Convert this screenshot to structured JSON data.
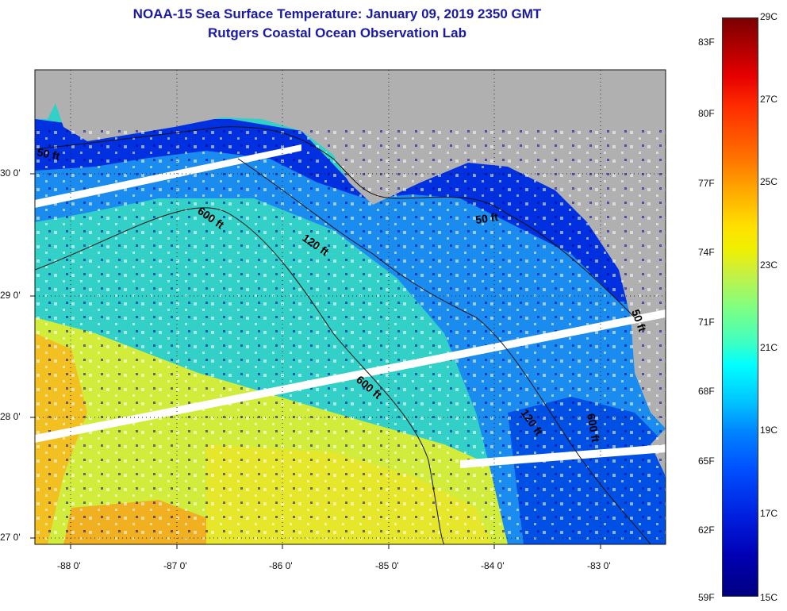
{
  "header": {
    "title": "NOAA-15 Sea Surface Temperature:  January 09, 2019 2350 GMT",
    "subtitle": "Rutgers Coastal Ocean Observation Lab"
  },
  "map": {
    "lon_range": [
      -88.35,
      -82.35
    ],
    "lat_range": [
      26.95,
      30.85
    ],
    "lon_ticks": [
      "-88 0'",
      "-87 0'",
      "-86 0'",
      "-85 0'",
      "-84 0'",
      "-83 0'"
    ],
    "lat_ticks": [
      "30 0'",
      "29 0'",
      "28 0'",
      "27 0'"
    ],
    "contour_labels": [
      "50 ft",
      "600 ft",
      "120 ft",
      "50 ft",
      "600 ft",
      "120 ft",
      "600 ft",
      "50 ft"
    ],
    "land_color": "#b0b0b0",
    "grid": "dotted"
  },
  "colorbar": {
    "fahrenheit_labels": [
      "83F",
      "80F",
      "77F",
      "74F",
      "71F",
      "68F",
      "65F",
      "62F",
      "59F"
    ],
    "celsius_labels": [
      "29C",
      "27C",
      "25C",
      "23C",
      "21C",
      "19C",
      "17C",
      "15C"
    ],
    "min": "15C",
    "max": "29C"
  }
}
